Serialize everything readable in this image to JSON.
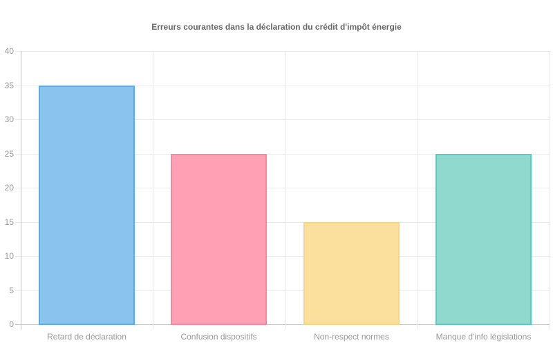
{
  "chart_data": {
    "type": "bar",
    "title": "Erreurs courantes dans la déclaration du crédit d'impôt énergie",
    "categories": [
      "Retard de déclaration",
      "Confusion dispositifs",
      "Non-respect normes",
      "Manque d'info législations"
    ],
    "values": [
      35,
      25,
      15,
      25
    ],
    "series": [
      {
        "name": "Erreurs",
        "values": [
          35,
          25,
          15,
          25
        ]
      }
    ],
    "bar_fill_colors": [
      "#8AC4EE",
      "#FFA0B4",
      "#FBE09D",
      "#90D9CF"
    ],
    "bar_border_colors": [
      "#5CACE2",
      "#F9889F",
      "#F7D683",
      "#5FC9BC"
    ],
    "xlabel": "",
    "ylabel": "",
    "ylim": [
      0,
      40
    ],
    "ytick_step": 5,
    "ytick_labels": [
      "0",
      "5",
      "10",
      "15",
      "20",
      "25",
      "30",
      "35",
      "40"
    ],
    "grid": true,
    "legend": false,
    "colors": {
      "background": "#FFFFFF",
      "gridline": "#E9E9E9",
      "axis_line": "#C3C3C3",
      "title_text": "#666666",
      "tick_text": "#999999"
    }
  }
}
